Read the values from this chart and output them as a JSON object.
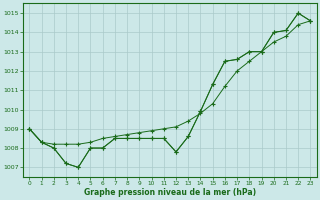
{
  "xlabel": "Graphe pression niveau de la mer (hPa)",
  "bg_color": "#cce8e8",
  "grid_color": "#aacaca",
  "line_color": "#1a6b1a",
  "ylim": [
    1006.5,
    1015.5
  ],
  "xlim": [
    -0.5,
    23.5
  ],
  "yticks": [
    1007,
    1008,
    1009,
    1010,
    1011,
    1012,
    1013,
    1014,
    1015
  ],
  "xticks": [
    0,
    1,
    2,
    3,
    4,
    5,
    6,
    7,
    8,
    9,
    10,
    11,
    12,
    13,
    14,
    15,
    16,
    17,
    18,
    19,
    20,
    21,
    22,
    23
  ],
  "series1": [
    1009.0,
    1008.3,
    1008.0,
    1007.2,
    1007.0,
    1008.0,
    1008.0,
    1008.5,
    1008.5,
    1008.5,
    1008.5,
    1008.5,
    1007.8,
    1008.6,
    1009.9,
    1011.3,
    1012.5,
    1012.6,
    1013.0,
    1013.0,
    1014.0,
    1014.1,
    1015.0,
    1014.6
  ],
  "series2": [
    1009.0,
    1008.3,
    1008.2,
    1008.2,
    1008.2,
    1008.3,
    1008.5,
    1008.6,
    1008.7,
    1008.8,
    1008.9,
    1009.0,
    1009.1,
    1009.4,
    1009.8,
    1010.3,
    1011.2,
    1012.0,
    1012.5,
    1013.0,
    1013.5,
    1013.8,
    1014.4,
    1014.6
  ],
  "series3": [
    1009.0,
    1008.3,
    1008.0,
    1007.2,
    1007.0,
    1008.0,
    1008.0,
    1008.5,
    1008.5,
    1008.5,
    1008.5,
    1008.5,
    1007.8,
    1008.6,
    1009.9,
    1011.3,
    1012.5,
    1012.6,
    1013.0,
    1013.0,
    1014.0,
    1014.1,
    1015.0,
    1014.6
  ],
  "figsize": [
    3.2,
    2.0
  ],
  "dpi": 100
}
